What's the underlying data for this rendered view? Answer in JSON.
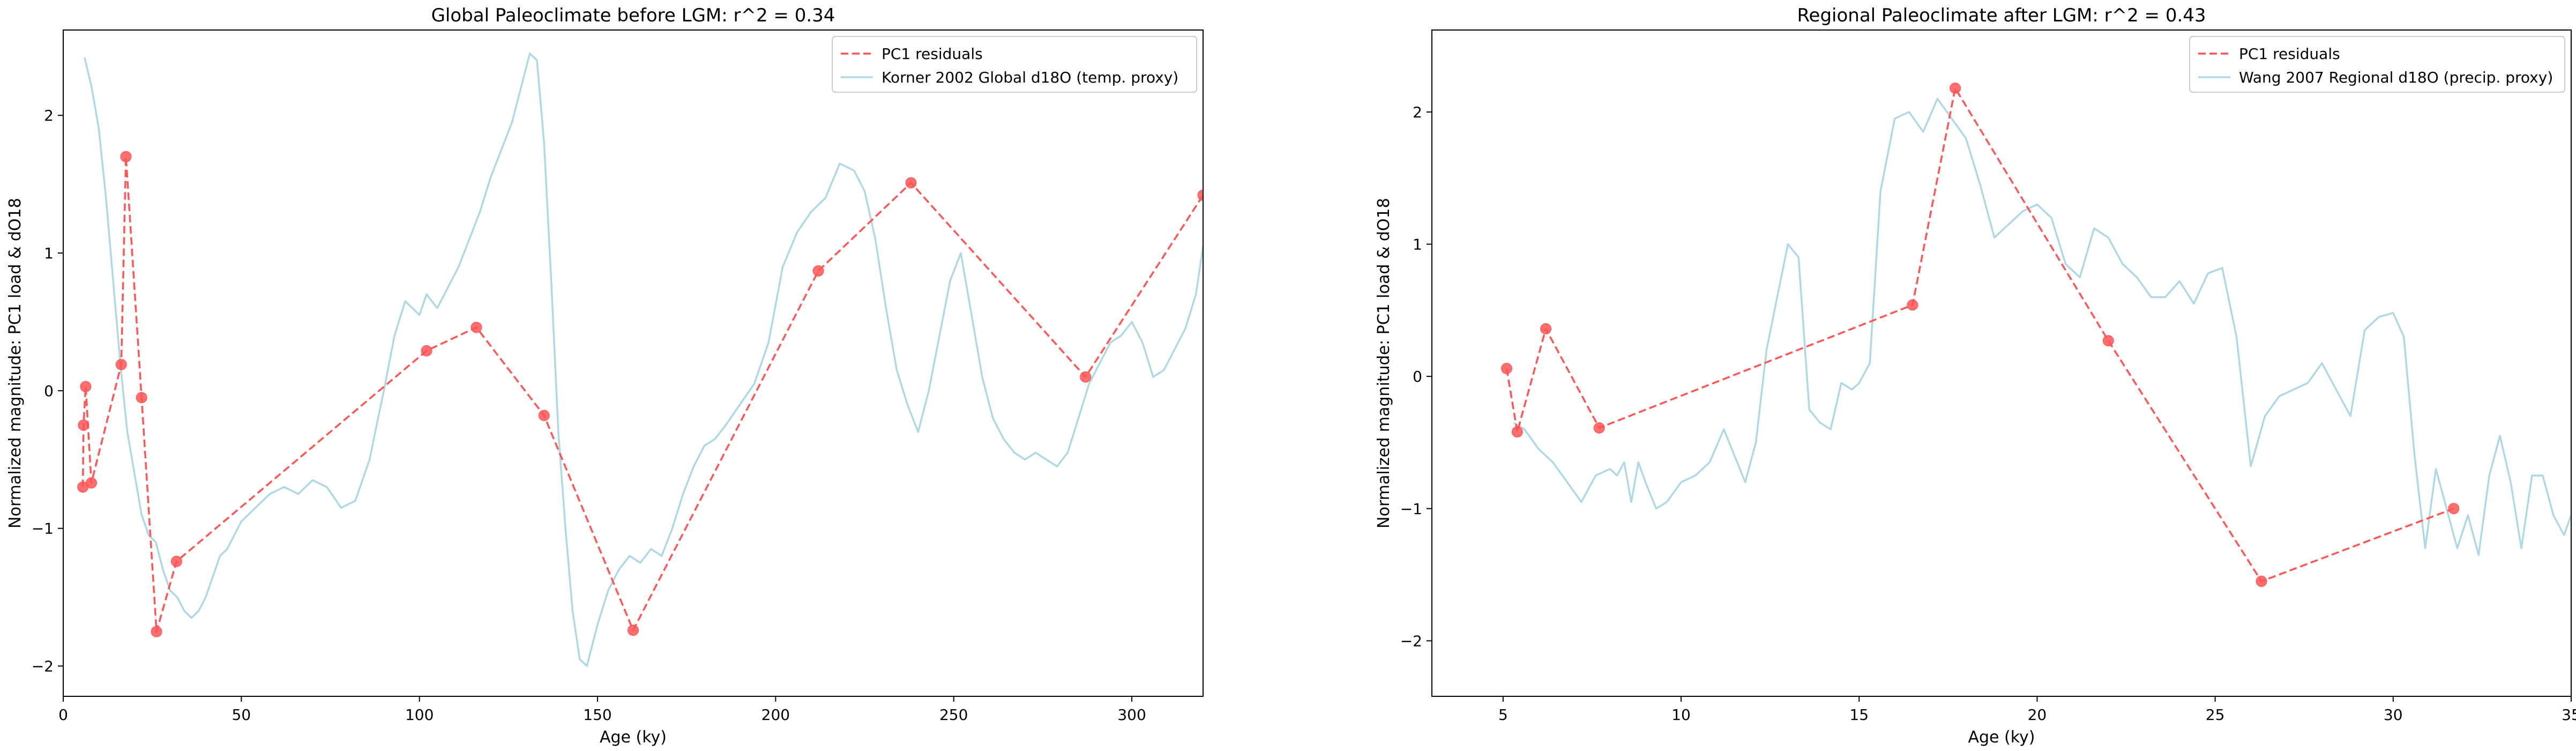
{
  "chart_data": [
    {
      "type": "line",
      "title": "Global Paleoclimate before LGM: r^2 = 0.34",
      "xlabel": "Age (ky)",
      "ylabel": "Normalized magnitude: PC1 load & dO18",
      "xlim": [
        0,
        320
      ],
      "ylim": [
        -2.22,
        2.62
      ],
      "xticks": [
        0,
        50,
        100,
        150,
        200,
        250,
        300
      ],
      "yticks": [
        -2,
        -1,
        0,
        1,
        2
      ],
      "grid": false,
      "legend_position": "top-right",
      "series": [
        {
          "name": "PC1 residuals",
          "style": "dashed-with-markers",
          "color": "#ff5555",
          "x": [
            5.5,
            5.7,
            6.3,
            7.9,
            16.3,
            17.6,
            22.0,
            26.2,
            31.8,
            102,
            116,
            135,
            160,
            212,
            238,
            287,
            320
          ],
          "y": [
            -0.7,
            -0.25,
            0.03,
            -0.67,
            0.19,
            1.7,
            -0.05,
            -1.75,
            -1.24,
            0.29,
            0.46,
            -0.18,
            -1.74,
            0.87,
            1.51,
            0.1,
            1.42
          ]
        },
        {
          "name": "Korner 2002 Global d18O (temp. proxy)",
          "style": "solid",
          "color": "#add8e6",
          "x": [
            6,
            8,
            10,
            12,
            14,
            16,
            18,
            20,
            22,
            24,
            26,
            28,
            30,
            32,
            34,
            36,
            38,
            40,
            42,
            44,
            46,
            48,
            50,
            54,
            58,
            62,
            66,
            70,
            74,
            78,
            82,
            86,
            90,
            93,
            96,
            98,
            100,
            102,
            105,
            108,
            111,
            114,
            117,
            120,
            123,
            126,
            129,
            131,
            133,
            135,
            137,
            139,
            141,
            143,
            145,
            147,
            150,
            153,
            156,
            159,
            162,
            165,
            168,
            171,
            174,
            177,
            180,
            183,
            186,
            190,
            194,
            198,
            202,
            206,
            210,
            214,
            218,
            222,
            225,
            228,
            231,
            234,
            237,
            240,
            243,
            246,
            249,
            252,
            255,
            258,
            261,
            264,
            267,
            270,
            273,
            276,
            279,
            282,
            285,
            288,
            291,
            294,
            297,
            300,
            303,
            306,
            309,
            312,
            315,
            318,
            320
          ],
          "y": [
            2.42,
            2.2,
            1.9,
            1.4,
            0.8,
            0.2,
            -0.3,
            -0.6,
            -0.9,
            -1.05,
            -1.1,
            -1.3,
            -1.45,
            -1.5,
            -1.6,
            -1.65,
            -1.6,
            -1.5,
            -1.35,
            -1.2,
            -1.15,
            -1.05,
            -0.95,
            -0.85,
            -0.75,
            -0.7,
            -0.75,
            -0.65,
            -0.7,
            -0.85,
            -0.8,
            -0.5,
            0.0,
            0.4,
            0.65,
            0.6,
            0.55,
            0.7,
            0.6,
            0.75,
            0.9,
            1.1,
            1.3,
            1.55,
            1.75,
            1.95,
            2.25,
            2.45,
            2.4,
            1.8,
            0.8,
            -0.3,
            -1.0,
            -1.6,
            -1.95,
            -2.0,
            -1.7,
            -1.45,
            -1.3,
            -1.2,
            -1.25,
            -1.15,
            -1.2,
            -1.0,
            -0.75,
            -0.55,
            -0.4,
            -0.35,
            -0.25,
            -0.1,
            0.05,
            0.35,
            0.9,
            1.15,
            1.3,
            1.4,
            1.65,
            1.6,
            1.45,
            1.1,
            0.6,
            0.15,
            -0.1,
            -0.3,
            0.0,
            0.4,
            0.8,
            1.0,
            0.55,
            0.1,
            -0.2,
            -0.35,
            -0.45,
            -0.5,
            -0.45,
            -0.5,
            -0.55,
            -0.45,
            -0.2,
            0.05,
            0.2,
            0.35,
            0.4,
            0.5,
            0.35,
            0.1,
            0.15,
            0.3,
            0.45,
            0.7,
            1.05
          ]
        }
      ]
    },
    {
      "type": "line",
      "title": "Regional Paleoclimate after LGM: r^2 = 0.43",
      "xlabel": "Age (ky)",
      "ylabel": "Normalized magnitude: PC1 load & dO18",
      "xlim": [
        3,
        35
      ],
      "ylim": [
        -2.42,
        2.62
      ],
      "xticks": [
        5,
        10,
        15,
        20,
        25,
        30,
        35
      ],
      "yticks": [
        -2,
        -1,
        0,
        1,
        2
      ],
      "grid": false,
      "legend_position": "top-right",
      "series": [
        {
          "name": "PC1 residuals",
          "style": "dashed-with-markers",
          "color": "#ff5555",
          "x": [
            5.1,
            5.4,
            6.2,
            7.7,
            16.5,
            17.7,
            22.0,
            26.3,
            31.7
          ],
          "y": [
            0.06,
            -0.42,
            0.36,
            -0.39,
            0.54,
            2.18,
            0.27,
            -1.55,
            -1.0
          ]
        },
        {
          "name": "Wang 2007 Regional d18O (precip. proxy)",
          "style": "solid",
          "color": "#add8e6",
          "x": [
            5.3,
            5.6,
            6.0,
            6.4,
            6.8,
            7.2,
            7.6,
            8.0,
            8.2,
            8.4,
            8.6,
            8.8,
            9.0,
            9.3,
            9.6,
            10.0,
            10.4,
            10.8,
            11.2,
            11.5,
            11.8,
            12.1,
            12.4,
            12.7,
            13.0,
            13.3,
            13.6,
            13.9,
            14.2,
            14.5,
            14.8,
            15.0,
            15.3,
            15.6,
            16.0,
            16.4,
            16.8,
            17.2,
            17.6,
            18.0,
            18.4,
            18.8,
            19.2,
            19.6,
            20.0,
            20.4,
            20.8,
            21.2,
            21.6,
            22.0,
            22.4,
            22.8,
            23.2,
            23.6,
            24.0,
            24.4,
            24.8,
            25.2,
            25.6,
            26.0,
            26.4,
            26.8,
            27.2,
            27.6,
            28.0,
            28.4,
            28.8,
            29.2,
            29.6,
            30.0,
            30.3,
            30.6,
            30.9,
            31.2,
            31.5,
            31.8,
            32.1,
            32.4,
            32.7,
            33.0,
            33.3,
            33.6,
            33.9,
            34.2,
            34.5,
            34.8,
            35.0
          ],
          "y": [
            -0.35,
            -0.4,
            -0.55,
            -0.65,
            -0.8,
            -0.95,
            -0.75,
            -0.7,
            -0.75,
            -0.65,
            -0.95,
            -0.65,
            -0.8,
            -1.0,
            -0.95,
            -0.8,
            -0.75,
            -0.65,
            -0.4,
            -0.6,
            -0.8,
            -0.5,
            0.2,
            0.6,
            1.0,
            0.9,
            -0.25,
            -0.35,
            -0.4,
            -0.05,
            -0.1,
            -0.05,
            0.1,
            1.4,
            1.95,
            2.0,
            1.85,
            2.1,
            1.95,
            1.8,
            1.45,
            1.05,
            1.15,
            1.25,
            1.3,
            1.2,
            0.85,
            0.75,
            1.12,
            1.05,
            0.85,
            0.75,
            0.6,
            0.6,
            0.72,
            0.55,
            0.78,
            0.82,
            0.3,
            -0.68,
            -0.3,
            -0.15,
            -0.1,
            -0.05,
            0.1,
            -0.1,
            -0.3,
            0.35,
            0.45,
            0.48,
            0.3,
            -0.6,
            -1.3,
            -0.7,
            -1.0,
            -1.3,
            -1.05,
            -1.35,
            -0.75,
            -0.45,
            -0.8,
            -1.3,
            -0.75,
            -0.75,
            -1.05,
            -1.2,
            -1.05
          ]
        }
      ]
    }
  ]
}
